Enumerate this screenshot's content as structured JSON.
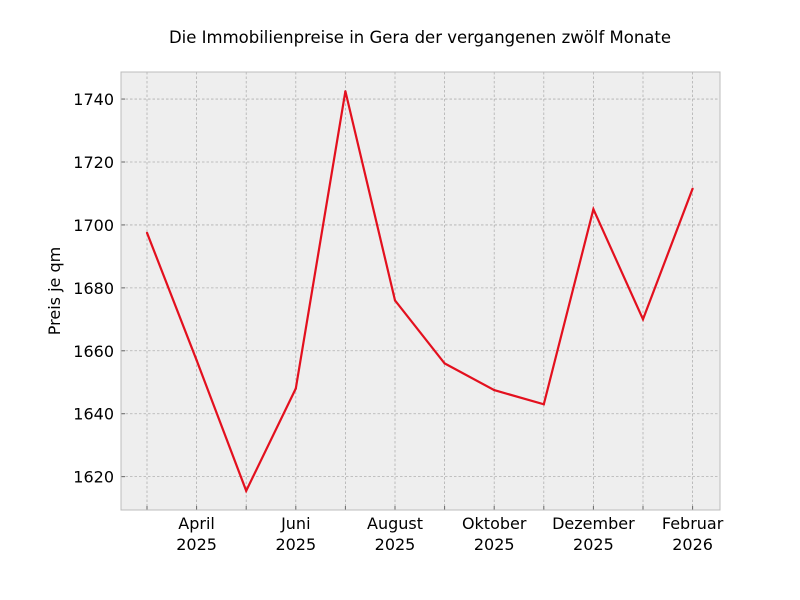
{
  "chart_data": {
    "type": "line",
    "title": "Die Immobilienpreise in Gera der vergangenen zwölf Monate",
    "xlabel": "",
    "ylabel": "Preis je qm",
    "x": [
      "2025-03",
      "2025-04",
      "2025-05",
      "2025-06",
      "2025-07",
      "2025-08",
      "2025-09",
      "2025-10",
      "2025-11",
      "2025-12",
      "2026-01",
      "2026-02"
    ],
    "series": [
      {
        "values": [
          1697.5,
          1657,
          1615.5,
          1648,
          1742.5,
          1676,
          1656,
          1647.5,
          1643,
          1705,
          1670,
          1711.5
        ]
      }
    ],
    "xticks": [
      {
        "x": "2025-04",
        "line1": "April",
        "line2": "2025"
      },
      {
        "x": "2025-06",
        "line1": "Juni",
        "line2": "2025"
      },
      {
        "x": "2025-08",
        "line1": "August",
        "line2": "2025"
      },
      {
        "x": "2025-10",
        "line1": "Oktober",
        "line2": "2025"
      },
      {
        "x": "2025-12",
        "line1": "Dezember",
        "line2": "2025"
      },
      {
        "x": "2026-02",
        "line1": "Februar",
        "line2": "2026"
      }
    ],
    "yticks": [
      1620,
      1640,
      1660,
      1680,
      1700,
      1720,
      1740
    ],
    "ylim": [
      1609.4,
      1748.6
    ],
    "grid": true,
    "line_color": "#e3101e",
    "background_color": "#eeeeee",
    "grid_color": "#b0b0b0"
  }
}
